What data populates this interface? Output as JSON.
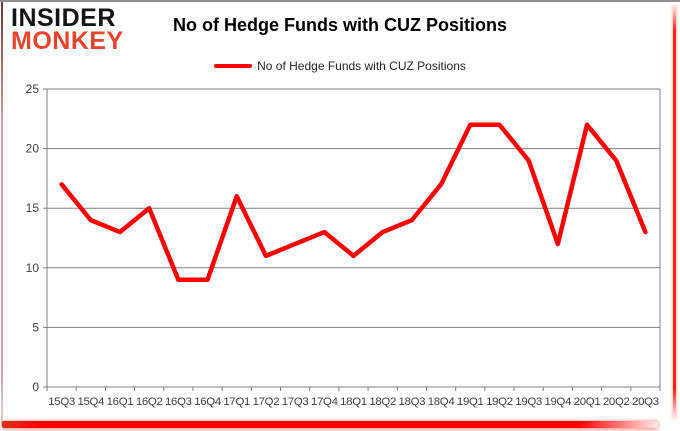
{
  "brand": {
    "line1": "INSIDER",
    "line2": "MONKEY"
  },
  "header": {
    "title": "No of Hedge Funds with CUZ Positions"
  },
  "legend": {
    "label": "No of Hedge Funds with CUZ Positions"
  },
  "colors": {
    "line": "#FF0000",
    "logo_red": "#E8432D",
    "grid": "#808080",
    "axis_line": "#808080",
    "axis_text": "#3f3f3f",
    "accent": "#FF0000"
  },
  "chart_data": {
    "type": "line",
    "title": "No of Hedge Funds with CUZ Positions",
    "categories": [
      "15Q3",
      "15Q4",
      "16Q1",
      "16Q2",
      "16Q3",
      "16Q4",
      "17Q1",
      "17Q2",
      "17Q3",
      "17Q4",
      "18Q1",
      "18Q2",
      "18Q3",
      "18Q4",
      "19Q1",
      "19Q2",
      "19Q3",
      "19Q4",
      "20Q1",
      "20Q2",
      "20Q3"
    ],
    "series": [
      {
        "name": "No of Hedge Funds with CUZ Positions",
        "color": "#FF0000",
        "values": [
          17,
          14,
          13,
          15,
          9,
          9,
          16,
          11,
          12,
          13,
          11,
          13,
          14,
          17,
          22,
          22,
          19,
          12,
          22,
          19,
          13
        ]
      }
    ],
    "xlabel": "",
    "ylabel": "",
    "ylim": [
      0,
      25
    ],
    "yticks": [
      0,
      5,
      10,
      15,
      20,
      25
    ],
    "grid": "horizontal",
    "legend_position": "top-center"
  }
}
